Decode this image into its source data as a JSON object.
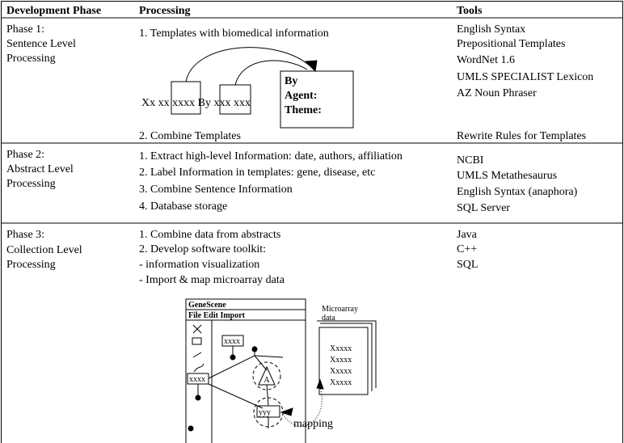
{
  "table": {
    "header": [
      "Development Phase",
      "Processing",
      "Tools"
    ],
    "rows": [
      {
        "phase": [
          "Phase 1:",
          "Sentence Level",
          "Processing"
        ],
        "processing": [
          "1. Templates with biomedical information",
          "2. Combine Templates"
        ],
        "tools": [
          "English Syntax",
          "Prepositional Templates",
          "WordNet 1.6",
          "UMLS SPECIALIST Lexicon",
          "AZ Noun Phraser",
          "Rewrite Rules for Templates"
        ],
        "diagram": {
          "sentence": "Xx xx xxxx By xxx xxx",
          "template": [
            "By",
            "Agent:",
            "Theme:"
          ]
        }
      },
      {
        "phase": [
          "Phase 2:",
          "Abstract Level",
          "Processing"
        ],
        "processing": [
          "1. Extract high-level Information: date, authors, affiliation",
          "2. Label  Information in templates: gene, disease, etc",
          "3. Combine Sentence Information",
          "4. Database storage"
        ],
        "tools": [
          "NCBI",
          "UMLS Metathesaurus",
          "English Syntax (anaphora)",
          "SQL Server"
        ]
      },
      {
        "phase": [
          "Phase 3:",
          "Collection Level",
          "Processing"
        ],
        "processing": [
          "1. Combine data from abstracts",
          "2. Develop software toolkit:",
          "- information visualization",
          "- Import & map microarray data"
        ],
        "tools": [
          "Java",
          "C++",
          "SQL"
        ],
        "diagram": {
          "window_title": "GeneScene",
          "menu": "File Edit Import",
          "node_a": "xxxx",
          "node_b": "xxxx",
          "node_c": "A",
          "node_d": "yyy",
          "doc_title": [
            "Microarray",
            "data"
          ],
          "doc_lines": [
            "Xxxxx",
            "Xxxxx",
            "Xxxxx",
            "Xxxxx"
          ],
          "mapping": "mapping"
        }
      }
    ]
  }
}
